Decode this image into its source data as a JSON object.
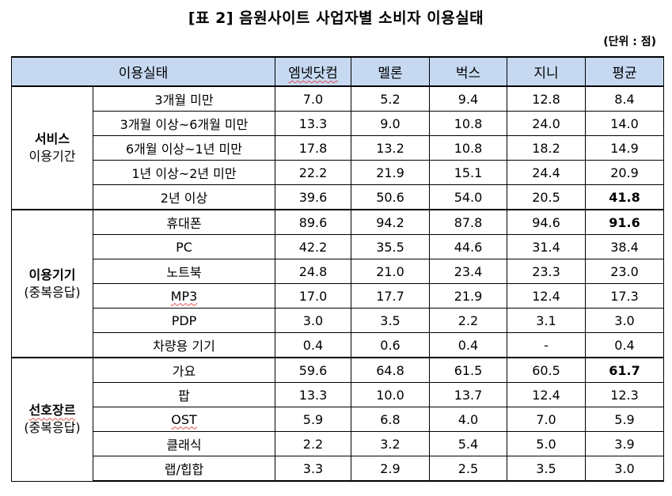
{
  "title": "[표 2] 음원사이트 사업자별 소비자 이용실태",
  "unit": "(단위 : 점)",
  "header": {
    "category": "이용실태",
    "columns": [
      "엠넷닷컴",
      "멜론",
      "벅스",
      "지니",
      "평균"
    ]
  },
  "groups": [
    {
      "label_line1": "서비스",
      "label_line2": "이용기간",
      "rows": [
        {
          "label": "3개월 미만",
          "values": [
            "7.0",
            "5.2",
            "9.4",
            "12.8",
            "8.4"
          ]
        },
        {
          "label": "3개월 이상~6개월 미만",
          "values": [
            "13.3",
            "9.0",
            "10.8",
            "24.0",
            "14.0"
          ]
        },
        {
          "label": "6개월 이상~1년 미만",
          "values": [
            "17.8",
            "13.2",
            "10.8",
            "18.2",
            "14.9"
          ]
        },
        {
          "label": "1년 이상~2년 미만",
          "values": [
            "22.2",
            "21.9",
            "15.1",
            "24.4",
            "20.9"
          ]
        },
        {
          "label": "2년 이상",
          "values": [
            "39.6",
            "50.6",
            "54.0",
            "20.5",
            "41.8"
          ]
        }
      ]
    },
    {
      "label_line1": "이용기기",
      "label_line2": "(중복응답)",
      "rows": [
        {
          "label": "휴대폰",
          "values": [
            "89.6",
            "94.2",
            "87.8",
            "94.6",
            "91.6"
          ]
        },
        {
          "label": "PC",
          "values": [
            "42.2",
            "35.5",
            "44.6",
            "31.4",
            "38.4"
          ]
        },
        {
          "label": "노트북",
          "values": [
            "24.8",
            "21.0",
            "23.4",
            "23.3",
            "23.0"
          ]
        },
        {
          "label": "MP3",
          "values": [
            "17.0",
            "17.7",
            "21.9",
            "12.4",
            "17.3"
          ]
        },
        {
          "label": "PDP",
          "values": [
            "3.0",
            "3.5",
            "2.2",
            "3.1",
            "3.0"
          ]
        },
        {
          "label": "차량용 기기",
          "values": [
            "0.4",
            "0.6",
            "0.4",
            "-",
            "0.4"
          ]
        }
      ]
    },
    {
      "label_line1": "선호장르",
      "label_line2": "(중복응답)",
      "rows": [
        {
          "label": "가요",
          "values": [
            "59.6",
            "64.8",
            "61.5",
            "60.5",
            "61.7"
          ]
        },
        {
          "label": "팝",
          "values": [
            "13.3",
            "10.0",
            "13.7",
            "12.4",
            "12.3"
          ]
        },
        {
          "label": "OST",
          "values": [
            "5.9",
            "6.8",
            "4.0",
            "7.0",
            "5.9"
          ]
        },
        {
          "label": "클래식",
          "values": [
            "2.2",
            "3.2",
            "5.4",
            "5.0",
            "3.9"
          ]
        },
        {
          "label": "랩/힙합",
          "values": [
            "3.3",
            "2.9",
            "2.5",
            "3.5",
            "3.0"
          ]
        }
      ]
    }
  ],
  "header_bg": "#c6d9f1"
}
